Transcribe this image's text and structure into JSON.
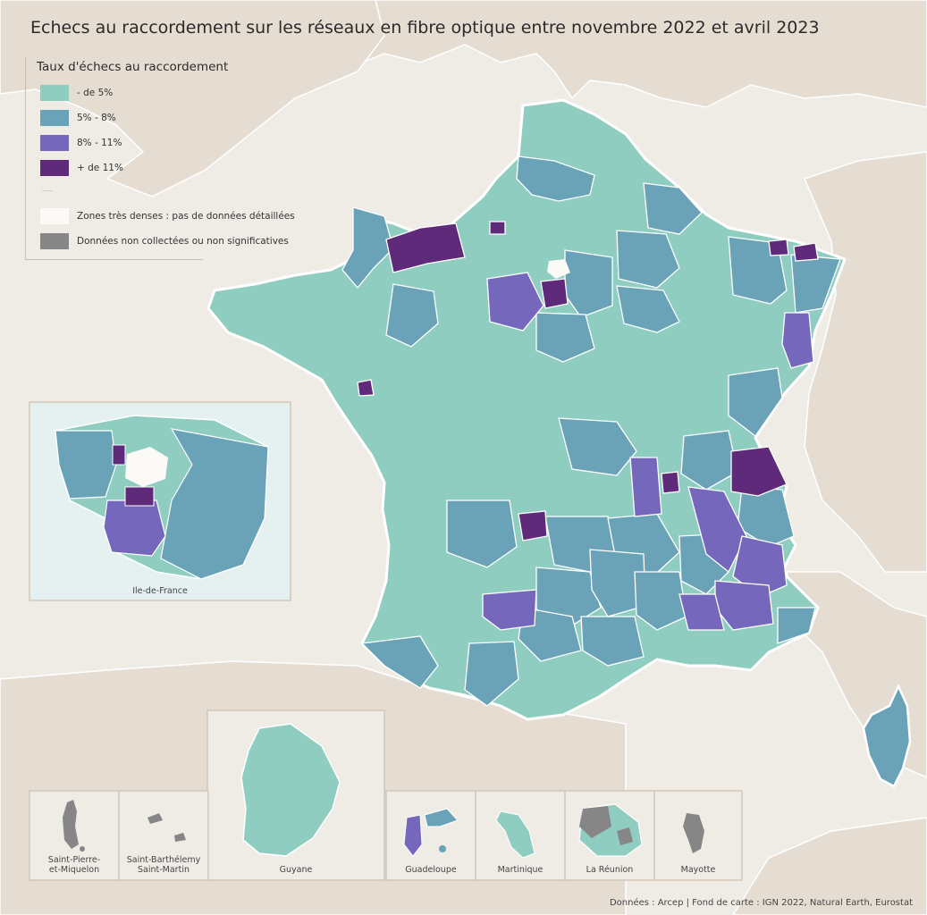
{
  "title": "Echecs au raccordement sur les réseaux en fibre optique entre novembre 2022 et avril 2023",
  "legend": {
    "title": "Taux d'échecs au raccordement",
    "classes": [
      {
        "label": "- de 5%",
        "color": "#8fcdc1"
      },
      {
        "label": "5% - 8%",
        "color": "#6aa2b8"
      },
      {
        "label": "8% - 11%",
        "color": "#7567bb"
      },
      {
        "label": "+ de 11%",
        "color": "#5f2a7a"
      }
    ],
    "extra": [
      {
        "label": "Zones très denses : pas de données détaillées",
        "color": "#fbfaf7"
      },
      {
        "label": "Données non collectées ou non significatives",
        "color": "#868686"
      }
    ]
  },
  "insets": {
    "idf": "Ile-de-France",
    "spm": "Saint-Pierre-\net-Miquelon",
    "sbsm": "Saint-Barthélemy\nSaint-Martin",
    "guyane": "Guyane",
    "guadeloupe": "Guadeloupe",
    "martinique": "Martinique",
    "reunion": "La Réunion",
    "mayotte": "Mayotte"
  },
  "credits": "Données : Arcep | Fond de carte : IGN 2022, Natural Earth, Eurostat"
}
